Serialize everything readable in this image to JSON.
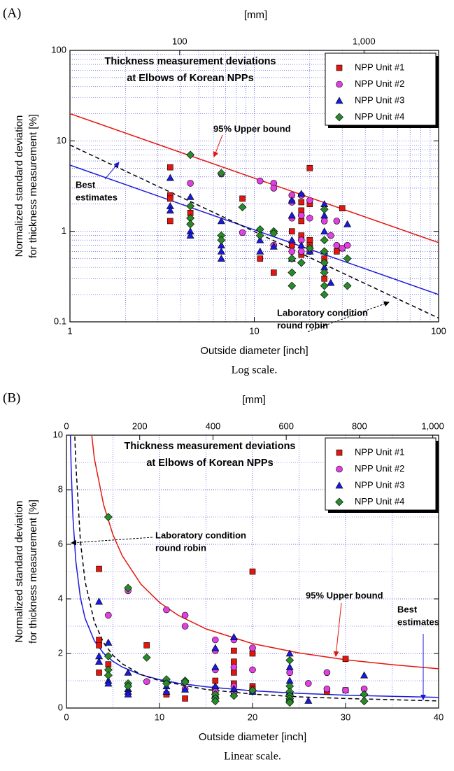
{
  "chart_data": [
    {
      "type": "scatter",
      "panel": "(A)",
      "caption": "Log scale.",
      "title": [
        "Thickness measurement deviations",
        "at Elbows of Korean NPPs"
      ],
      "xlabel": "Outside diameter [inch]",
      "x2label": "[mm]",
      "ylabel": [
        "Normalized standard deviation",
        "for thickness measurement  [%]"
      ],
      "xlog": true,
      "ylog": true,
      "xlim": [
        1,
        100
      ],
      "ylim": [
        0.1,
        100
      ],
      "xticks": [
        1,
        10,
        100
      ],
      "yticks": [
        0.1,
        1,
        10,
        100
      ],
      "x2lim": [
        25.4,
        2540
      ],
      "x2ticks": [
        100,
        {
          "value": 1000,
          "label": "1,000"
        }
      ],
      "grid": true,
      "legend": "upper right",
      "series": [
        {
          "name": "NPP Unit #1",
          "color": "#e3170f",
          "marker": "square",
          "x": [
            3.5,
            3.5,
            3.5,
            3.5,
            4.5,
            8.625,
            10.75,
            12.75,
            16,
            16,
            18,
            18,
            18,
            18,
            18,
            20,
            20,
            20,
            20,
            24,
            24,
            28,
            30,
            30
          ],
          "values": [
            5.1,
            2.5,
            2.3,
            1.3,
            1.6,
            2.3,
            0.5,
            0.35,
            1.0,
            0.7,
            2.1,
            1.7,
            1.3,
            0.9,
            0.55,
            5.0,
            2.0,
            0.8,
            0.7,
            0.5,
            0.3,
            0.6,
            1.8,
            0.65
          ]
        },
        {
          "name": "NPP Unit #2",
          "color": "#e040e0",
          "marker": "circle",
          "x": [
            4.5,
            6.625,
            8.625,
            10.75,
            12.75,
            12.75,
            12.75,
            16,
            16,
            16,
            16,
            18,
            18,
            18,
            18,
            20,
            20,
            20,
            24,
            26,
            28,
            28,
            30,
            32
          ],
          "values": [
            3.4,
            4.3,
            0.97,
            3.6,
            3.4,
            3.0,
            0.7,
            2.5,
            2.1,
            1.4,
            0.6,
            2.5,
            1.5,
            0.8,
            0.6,
            2.2,
            1.4,
            0.6,
            1.3,
            0.9,
            1.3,
            0.7,
            0.65,
            0.7
          ]
        },
        {
          "name": "NPP Unit #3",
          "color": "#1a1adf",
          "marker": "triangle",
          "x": [
            3.5,
            3.5,
            3.5,
            4.5,
            4.5,
            4.5,
            6.625,
            6.625,
            6.625,
            6.625,
            10.75,
            10.75,
            12.75,
            16,
            16,
            16,
            16,
            18,
            18,
            20,
            24,
            24,
            24,
            24,
            24,
            26,
            32
          ],
          "values": [
            3.9,
            1.9,
            1.7,
            2.4,
            1.0,
            0.9,
            1.3,
            0.7,
            0.6,
            0.5,
            0.8,
            0.6,
            0.68,
            2.2,
            1.5,
            0.8,
            0.5,
            2.6,
            0.7,
            0.6,
            2.0,
            1.5,
            1.0,
            0.6,
            0.4,
            0.27,
            1.2
          ]
        },
        {
          "name": "NPP Unit #4",
          "color": "#2a8a2a",
          "marker": "diamond",
          "x": [
            4.5,
            4.5,
            4.5,
            4.5,
            6.625,
            6.625,
            6.625,
            8.625,
            10.75,
            10.75,
            12.75,
            12.75,
            16,
            16,
            16,
            18,
            20,
            24,
            24,
            24,
            24,
            24,
            24,
            24,
            32,
            32
          ],
          "values": [
            7.0,
            1.9,
            1.4,
            1.2,
            4.4,
            0.9,
            0.8,
            1.85,
            1.05,
            0.9,
            1.0,
            0.95,
            0.5,
            0.35,
            0.25,
            0.45,
            0.65,
            1.75,
            0.8,
            0.6,
            0.45,
            0.35,
            0.25,
            0.2,
            0.5,
            0.25
          ]
        }
      ],
      "fits": [
        {
          "label": [
            "95% Upper bound"
          ],
          "color": "#e3170f",
          "dash": false,
          "x": [
            1,
            100
          ],
          "values": [
            20,
            0.75
          ]
        },
        {
          "label": [
            "Best",
            "estimates"
          ],
          "color": "#1a1adf",
          "dash": false,
          "x": [
            1,
            100
          ],
          "values": [
            5.4,
            0.2
          ]
        },
        {
          "label": [
            "Laboratory condition",
            "round robin"
          ],
          "color": "#000000",
          "dash": true,
          "x": [
            1,
            100
          ],
          "values": [
            9,
            0.11
          ]
        }
      ]
    },
    {
      "type": "scatter",
      "panel": "(B)",
      "caption": "Linear scale.",
      "title": [
        "Thickness measurement deviations",
        "at Elbows of Korean NPPs"
      ],
      "xlabel": "Outside diameter [inch]",
      "x2label": "[mm]",
      "ylabel": [
        "Normalized standard deviation",
        "for thickness measurement  [%]"
      ],
      "xlog": false,
      "ylog": false,
      "xlim": [
        0,
        40
      ],
      "ylim": [
        0,
        10
      ],
      "xticks": [
        0,
        10,
        20,
        30,
        40
      ],
      "yticks": [
        0,
        2,
        4,
        6,
        8,
        10
      ],
      "x2lim": [
        0,
        1016
      ],
      "x2ticks": [
        0,
        200,
        400,
        600,
        800,
        {
          "value": 1000,
          "label": "1,000"
        }
      ],
      "grid": true,
      "legend": "upper right",
      "series": [
        {
          "name": "NPP Unit #1",
          "color": "#e3170f",
          "marker": "square",
          "x": [
            3.5,
            3.5,
            3.5,
            3.5,
            4.5,
            8.625,
            10.75,
            12.75,
            16,
            16,
            18,
            18,
            18,
            18,
            18,
            20,
            20,
            20,
            20,
            24,
            24,
            28,
            30,
            30
          ],
          "values": [
            5.1,
            2.5,
            2.3,
            1.3,
            1.6,
            2.3,
            0.5,
            0.35,
            1.0,
            0.7,
            2.1,
            1.7,
            1.3,
            0.9,
            0.55,
            5.0,
            2.0,
            0.8,
            0.7,
            0.5,
            0.3,
            0.6,
            1.8,
            0.65
          ]
        },
        {
          "name": "NPP Unit #2",
          "color": "#e040e0",
          "marker": "circle",
          "x": [
            4.5,
            6.625,
            8.625,
            10.75,
            12.75,
            12.75,
            12.75,
            16,
            16,
            16,
            16,
            18,
            18,
            18,
            18,
            20,
            20,
            20,
            24,
            26,
            28,
            28,
            30,
            32
          ],
          "values": [
            3.4,
            4.3,
            0.97,
            3.6,
            3.4,
            3.0,
            0.7,
            2.5,
            2.1,
            1.4,
            0.6,
            2.5,
            1.5,
            0.8,
            0.6,
            2.2,
            1.4,
            0.6,
            1.3,
            0.9,
            1.3,
            0.7,
            0.65,
            0.7
          ]
        },
        {
          "name": "NPP Unit #3",
          "color": "#1a1adf",
          "marker": "triangle",
          "x": [
            3.5,
            3.5,
            3.5,
            4.5,
            4.5,
            4.5,
            6.625,
            6.625,
            6.625,
            6.625,
            10.75,
            10.75,
            12.75,
            16,
            16,
            16,
            16,
            18,
            18,
            20,
            24,
            24,
            24,
            24,
            24,
            26,
            32
          ],
          "values": [
            3.9,
            1.9,
            1.7,
            2.4,
            1.0,
            0.9,
            1.3,
            0.7,
            0.6,
            0.5,
            0.8,
            0.6,
            0.68,
            2.2,
            1.5,
            0.8,
            0.5,
            2.6,
            0.7,
            0.6,
            2.0,
            1.5,
            1.0,
            0.6,
            0.4,
            0.27,
            1.2
          ]
        },
        {
          "name": "NPP Unit #4",
          "color": "#2a8a2a",
          "marker": "diamond",
          "x": [
            4.5,
            4.5,
            4.5,
            4.5,
            6.625,
            6.625,
            6.625,
            8.625,
            10.75,
            10.75,
            12.75,
            12.75,
            16,
            16,
            16,
            18,
            20,
            24,
            24,
            24,
            24,
            24,
            24,
            24,
            32,
            32
          ],
          "values": [
            7.0,
            1.9,
            1.4,
            1.2,
            4.4,
            0.9,
            0.8,
            1.85,
            1.05,
            0.9,
            1.0,
            0.95,
            0.5,
            0.35,
            0.25,
            0.45,
            0.65,
            1.75,
            0.8,
            0.6,
            0.45,
            0.35,
            0.25,
            0.2,
            0.5,
            0.25
          ]
        }
      ],
      "fits": [
        {
          "label": [
            "95% Upper bound"
          ],
          "color": "#e3170f",
          "dash": false,
          "x": [
            1,
            1.5,
            2,
            3,
            4,
            5,
            6,
            8,
            10,
            12,
            15,
            20,
            25,
            30,
            35,
            40
          ],
          "values": [
            20,
            15.0,
            12.2,
            9.14,
            7.44,
            6.35,
            5.58,
            4.54,
            3.87,
            3.4,
            2.9,
            2.36,
            2.02,
            1.77,
            1.59,
            1.44
          ]
        },
        {
          "label": [
            "Best",
            "estimates"
          ],
          "color": "#1a1adf",
          "dash": false,
          "x": [
            0.4,
            0.5,
            0.7,
            1,
            1.5,
            2,
            3,
            4,
            5,
            6,
            8,
            10,
            12,
            15,
            20,
            25,
            30,
            35,
            40
          ],
          "values": [
            10.4,
            8.87,
            6.97,
            5.4,
            4.04,
            3.29,
            2.46,
            2.0,
            1.71,
            1.5,
            1.22,
            1.04,
            0.91,
            0.78,
            0.63,
            0.54,
            0.47,
            0.43,
            0.39
          ]
        },
        {
          "label": [
            "Laboratory condition",
            "round robin"
          ],
          "color": "#000000",
          "dash": true,
          "x": [
            0.9,
            1,
            1.5,
            2,
            3,
            4,
            5,
            6,
            8,
            10,
            15,
            20,
            25,
            30,
            40
          ],
          "values": [
            9.95,
            9,
            6.11,
            4.64,
            3.15,
            2.39,
            1.93,
            1.62,
            1.23,
            1.0,
            0.68,
            0.51,
            0.41,
            0.35,
            0.26
          ]
        }
      ]
    }
  ]
}
